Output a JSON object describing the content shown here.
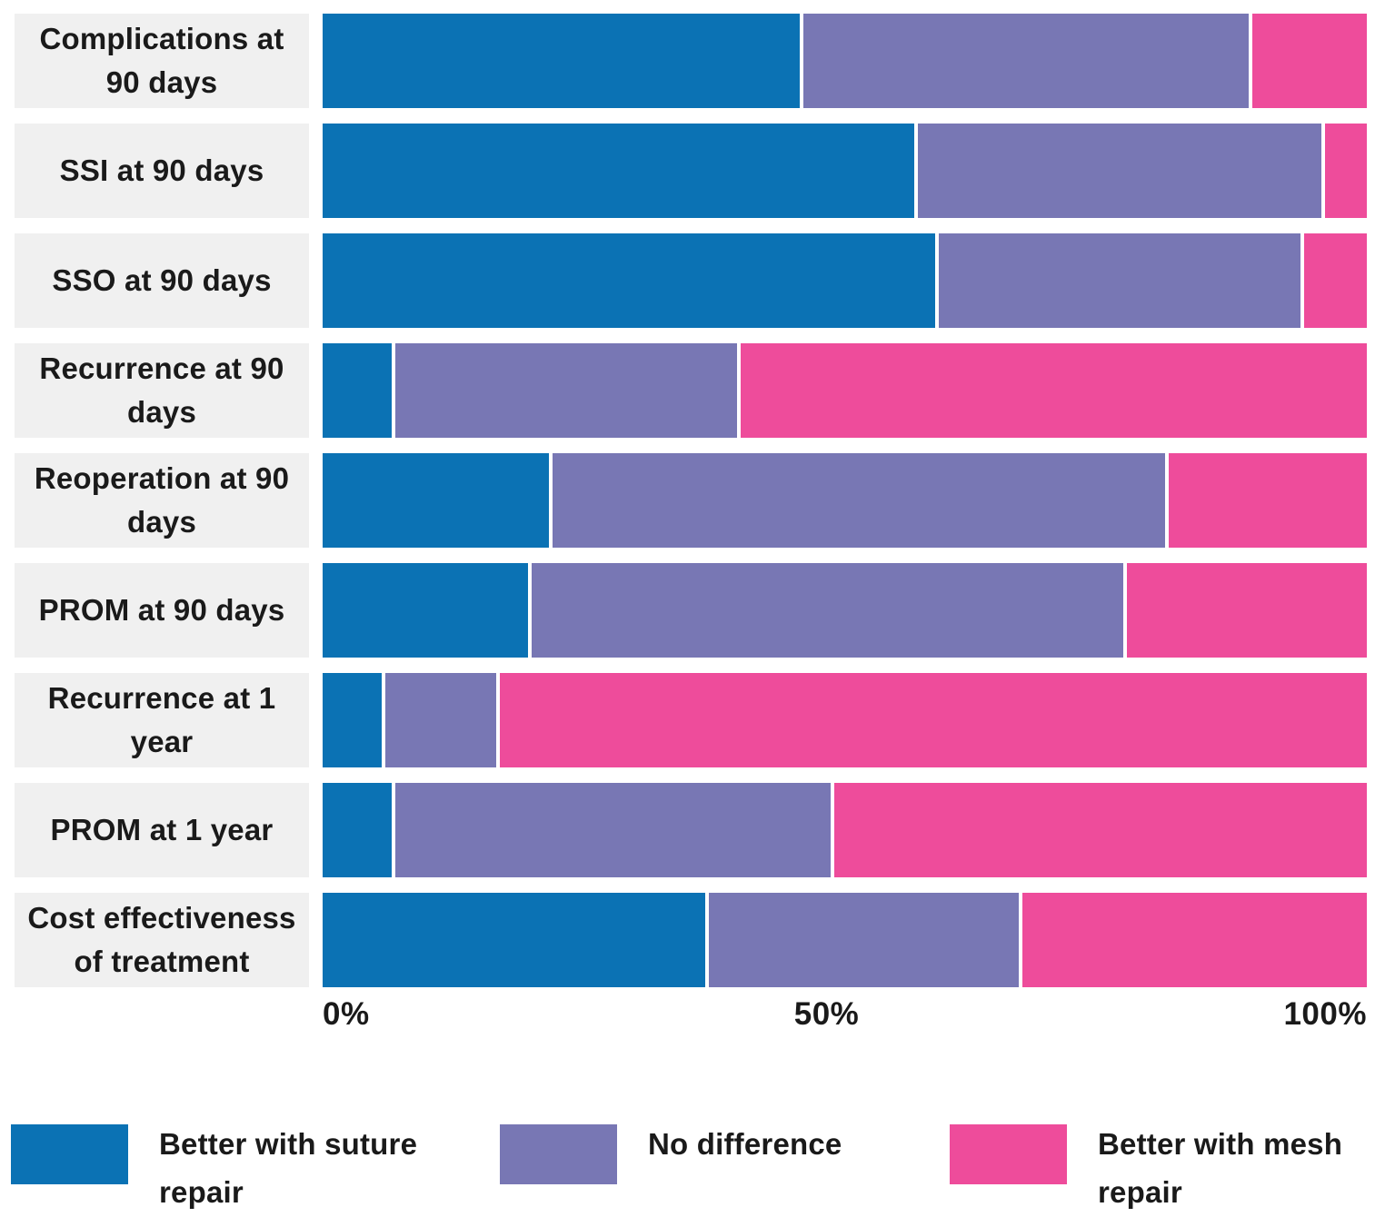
{
  "chart_data": {
    "type": "bar",
    "orientation": "horizontal",
    "stacked": true,
    "title": "",
    "xlabel": "",
    "ylabel": "",
    "xlim": [
      0,
      100
    ],
    "x_ticks": [
      "0%",
      "50%",
      "100%"
    ],
    "grid": false,
    "legend_position": "bottom",
    "categories": [
      "Complications at 90 days",
      "SSI at 90 days",
      "SSO at 90 days",
      "Recurrence at 90 days",
      "Reoperation at 90 days",
      "PROM at 90 days",
      "Recurrence at 1 year",
      "PROM at 1 year",
      "Cost effectiveness of treatment"
    ],
    "series": [
      {
        "key": "suture",
        "name": "Better with suture repair",
        "color": "#0b72b4",
        "values": [
          46,
          57,
          59,
          7,
          22,
          20,
          6,
          7,
          37
        ]
      },
      {
        "key": "no-difference",
        "name": "No difference",
        "color": "#7877b4",
        "values": [
          43,
          39,
          35,
          33,
          59,
          57,
          11,
          42,
          30
        ]
      },
      {
        "key": "mesh",
        "name": "Better with mesh repair",
        "color": "#ee4c9b",
        "values": [
          11,
          4,
          6,
          60,
          19,
          23,
          83,
          51,
          33
        ]
      }
    ]
  },
  "axis": {
    "tick_0": "0%",
    "tick_50": "50%",
    "tick_100": "100%"
  },
  "legend": {
    "item_1": "Better with suture repair",
    "item_2": "No difference",
    "item_3": "Better with mesh repair"
  },
  "colors": {
    "suture_blue": "#0b72b4",
    "no_difference_purple": "#7877b4",
    "mesh_pink": "#ee4c9b",
    "label_box_gray": "#f0f0f0",
    "text": "#1a1a1a",
    "background": "#ffffff",
    "segment_separator": "#ffffff"
  }
}
